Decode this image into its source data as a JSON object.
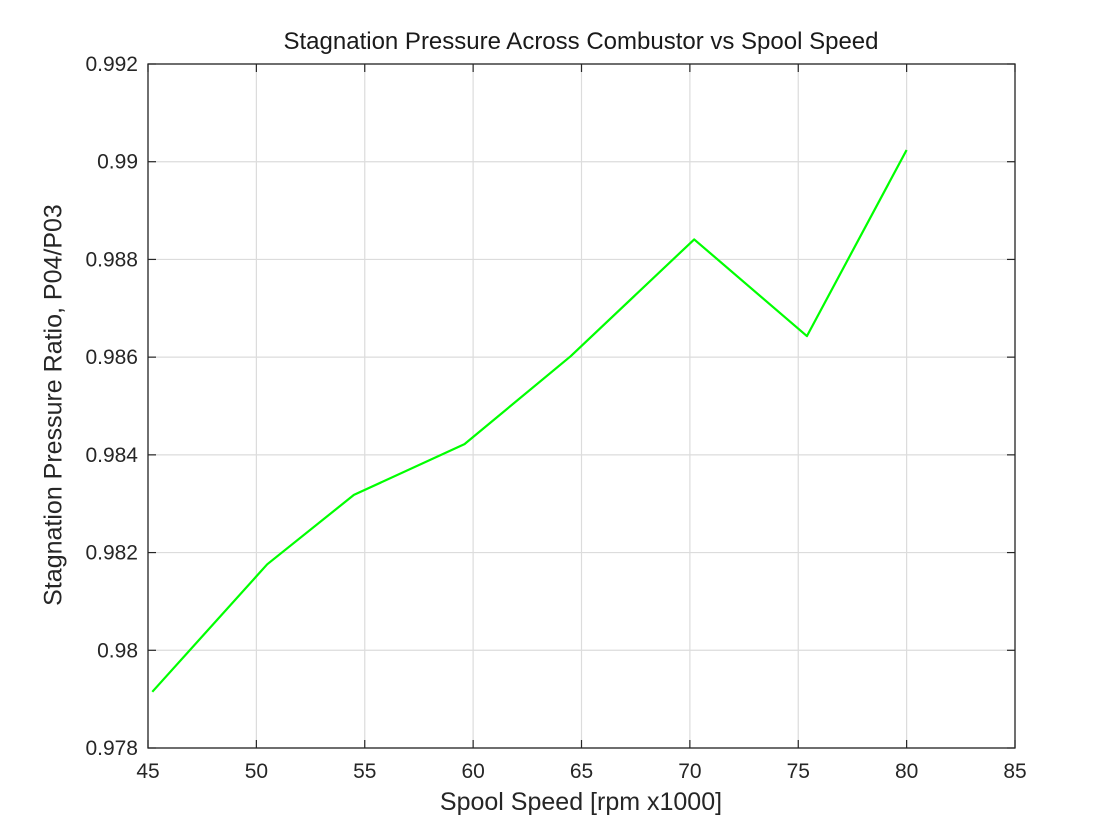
{
  "chart_data": {
    "type": "line",
    "title": "Stagnation Pressure Across Combustor vs Spool Speed",
    "xlabel": "Spool Speed [rpm x1000]",
    "ylabel": "Stagnation Pressure Ratio, P04/P03",
    "xlim": [
      45,
      85
    ],
    "ylim": [
      0.978,
      0.992
    ],
    "xticks": [
      45,
      50,
      55,
      60,
      65,
      70,
      75,
      80,
      85
    ],
    "xtick_labels": [
      "45",
      "50",
      "55",
      "60",
      "65",
      "70",
      "75",
      "80",
      "85"
    ],
    "yticks": [
      0.978,
      0.98,
      0.982,
      0.984,
      0.986,
      0.988,
      0.99,
      0.992
    ],
    "ytick_labels": [
      "0.978",
      "0.98",
      "0.982",
      "0.984",
      "0.986",
      "0.988",
      "0.99",
      "0.992"
    ],
    "grid": true,
    "series": [
      {
        "color": "#00ff00",
        "x": [
          45.2,
          50.5,
          54.5,
          59.6,
          64.5,
          70.2,
          75.4,
          80.0
        ],
        "y": [
          0.97915,
          0.98176,
          0.98318,
          0.98422,
          0.98602,
          0.98841,
          0.98643,
          0.99024
        ]
      }
    ]
  }
}
